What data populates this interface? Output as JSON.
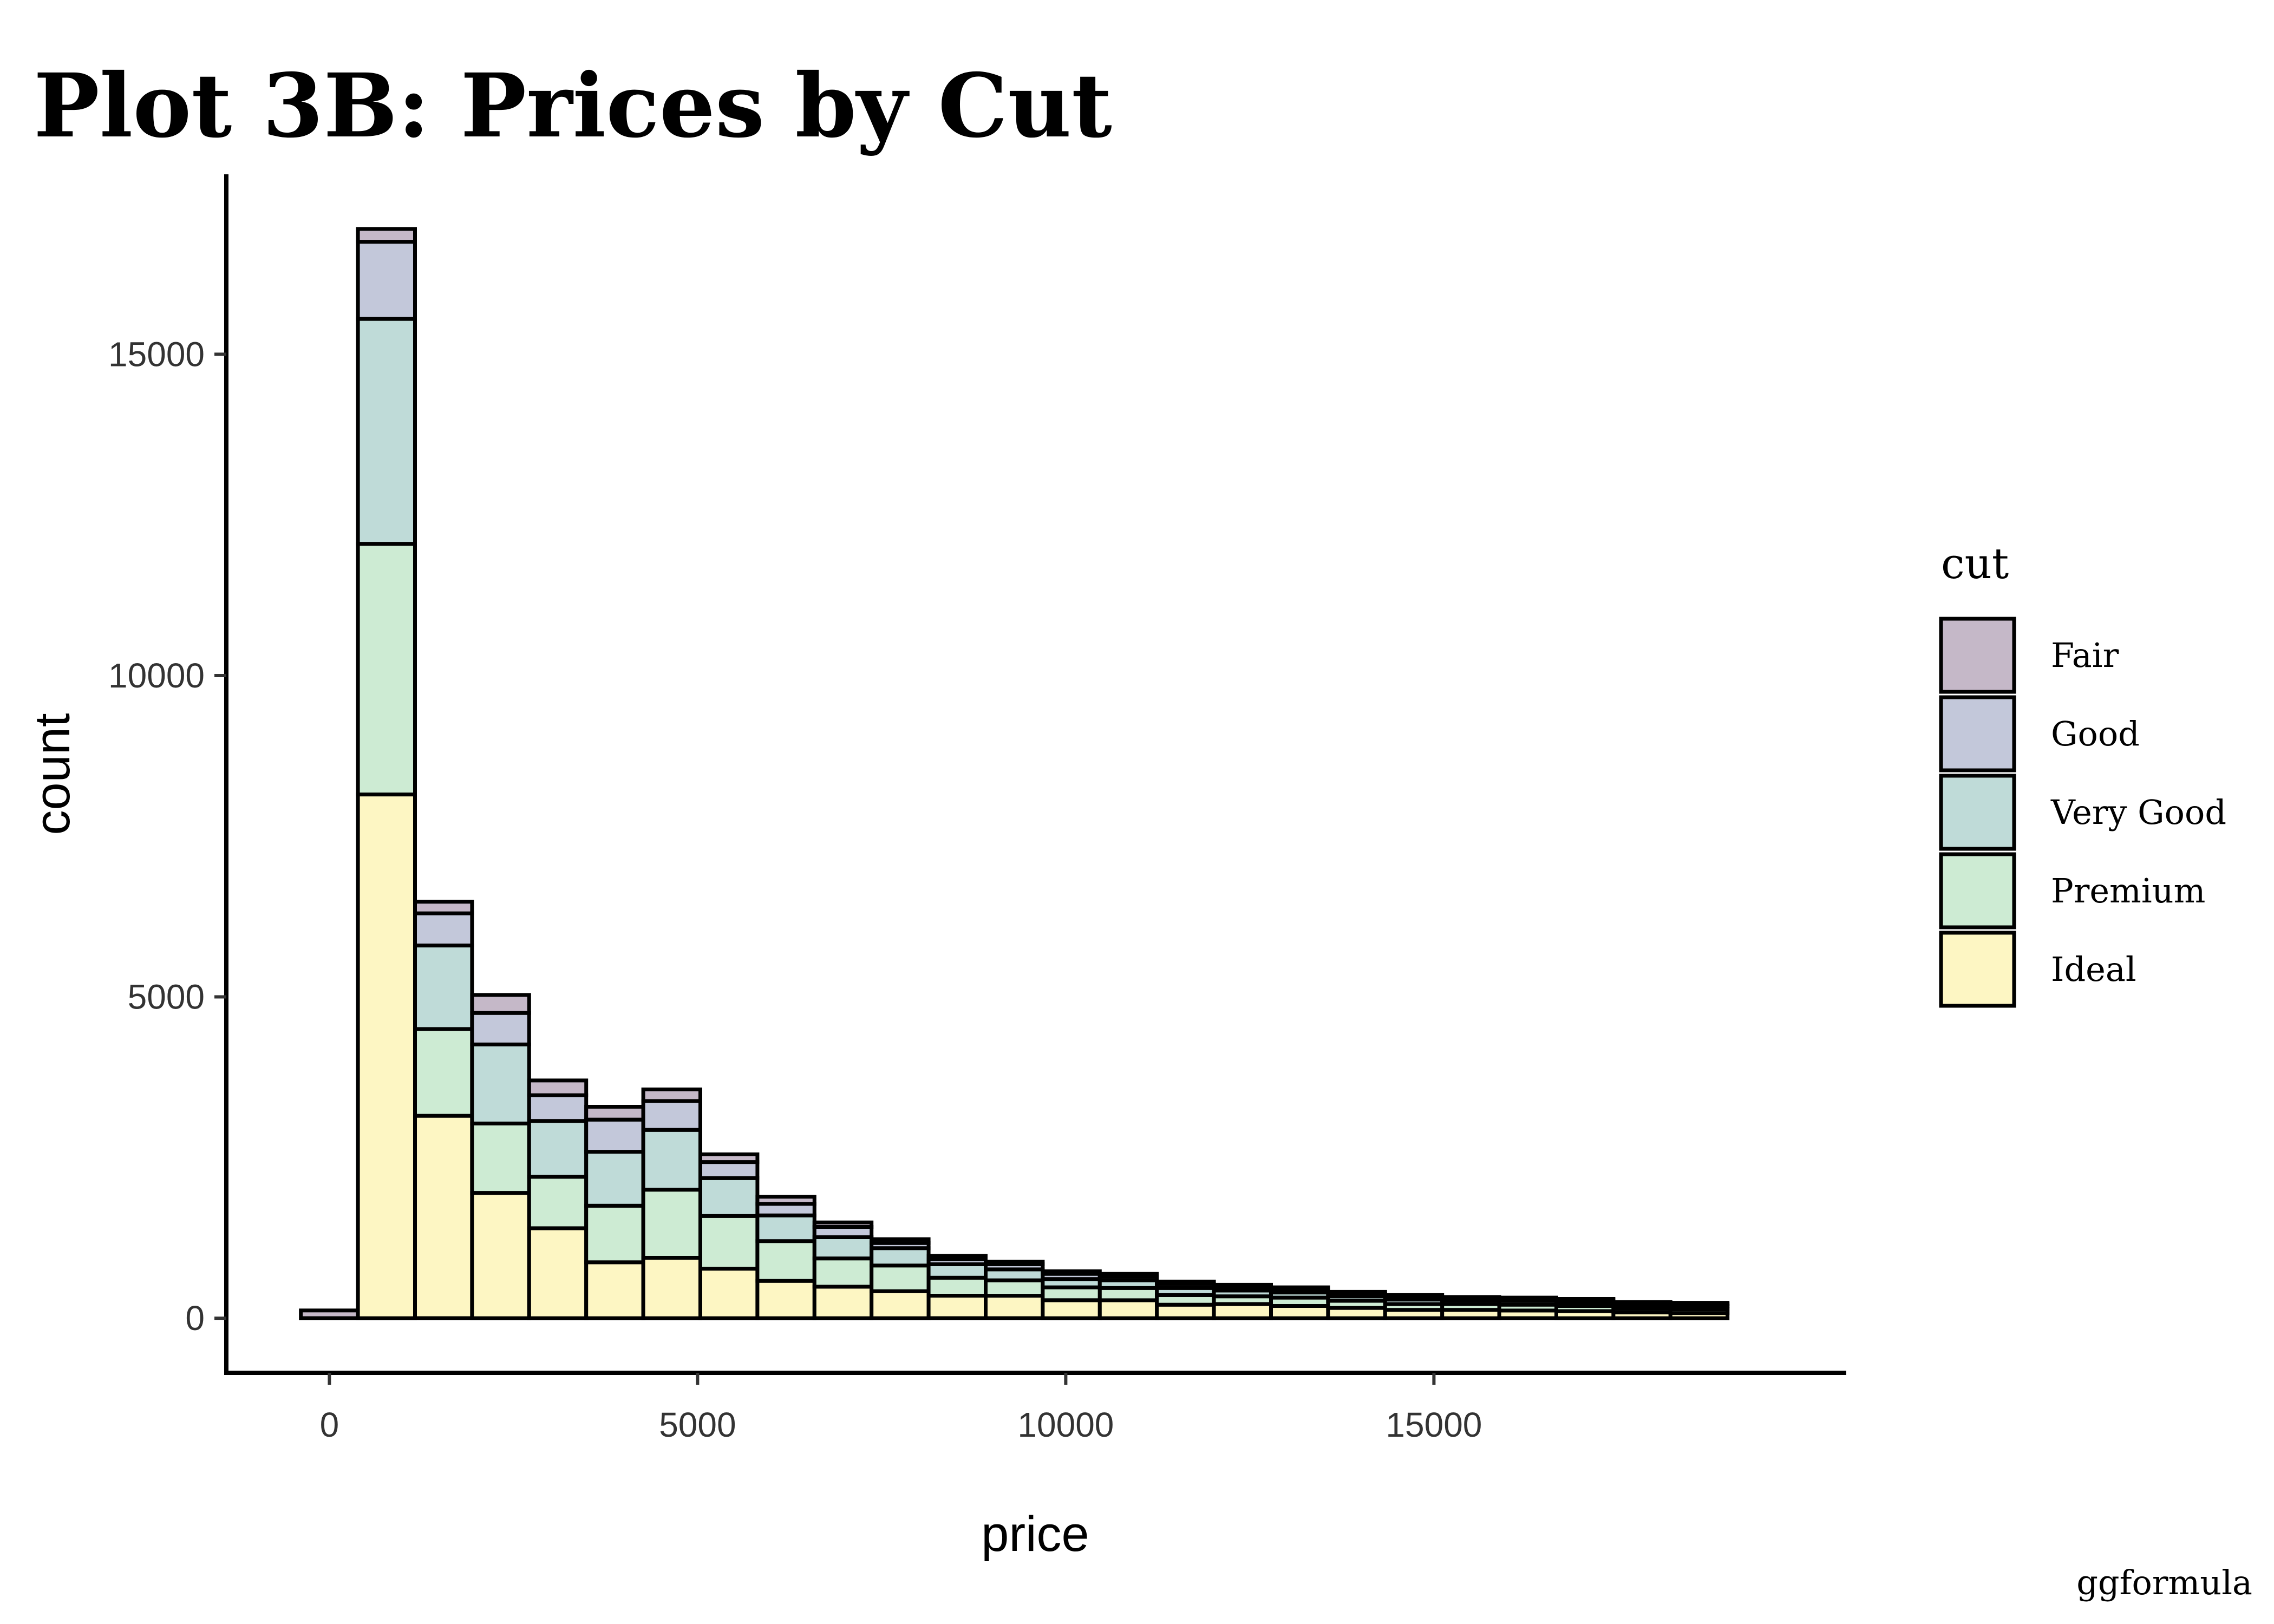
{
  "title": "Plot 3B: Prices by Cut",
  "caption": "ggformula",
  "chart_data": {
    "type": "bar",
    "subtype": "stacked-histogram",
    "xlabel": "price",
    "ylabel": "count",
    "xlim": [
      -1400,
      20600
    ],
    "ylim": [
      -850,
      17800
    ],
    "x_ticks": [
      0,
      5000,
      10000,
      15000
    ],
    "x_tick_labels": [
      "0",
      "5000",
      "10000",
      "15000"
    ],
    "y_ticks": [
      0,
      5000,
      10000,
      15000
    ],
    "y_tick_labels": [
      "0",
      "5000",
      "10000",
      "15000"
    ],
    "bin_width": 775,
    "bin_centers": [
      0,
      775,
      1550,
      2325,
      3100,
      3875,
      4650,
      5425,
      6200,
      6975,
      7750,
      8525,
      9300,
      10075,
      10850,
      11625,
      12400,
      13175,
      13950,
      14725,
      15500,
      16275,
      17050,
      17825,
      18600
    ],
    "series": [
      {
        "name": "Ideal",
        "color": "#fdf6c3",
        "values": [
          0,
          8150,
          3150,
          1950,
          1400,
          870,
          940,
          770,
          580,
          490,
          420,
          350,
          350,
          280,
          280,
          210,
          220,
          190,
          160,
          130,
          130,
          120,
          110,
          90,
          80
        ]
      },
      {
        "name": "Premium",
        "color": "#cdebd3",
        "values": [
          0,
          3900,
          1350,
          1080,
          800,
          880,
          1060,
          820,
          620,
          440,
          400,
          280,
          240,
          200,
          190,
          150,
          120,
          130,
          110,
          90,
          90,
          90,
          80,
          60,
          60
        ]
      },
      {
        "name": "Very Good",
        "color": "#bfdbd8",
        "values": [
          0,
          3500,
          1300,
          1230,
          870,
          840,
          930,
          590,
          400,
          330,
          270,
          210,
          170,
          130,
          120,
          110,
          90,
          80,
          70,
          70,
          60,
          60,
          60,
          50,
          50
        ]
      },
      {
        "name": "Good",
        "color": "#c3c8da",
        "values": [
          0,
          1200,
          500,
          490,
          400,
          500,
          450,
          250,
          180,
          160,
          80,
          80,
          80,
          80,
          60,
          60,
          50,
          50,
          40,
          40,
          30,
          30,
          30,
          30,
          30
        ]
      },
      {
        "name": "Fair",
        "color": "#c5b8c8",
        "values": [
          120,
          200,
          180,
          280,
          230,
          200,
          180,
          120,
          110,
          70,
          60,
          50,
          40,
          40,
          40,
          40,
          40,
          30,
          30,
          30,
          20,
          20,
          20,
          20,
          20
        ]
      }
    ],
    "legend": {
      "title": "cut",
      "position": "right",
      "items": [
        "Fair",
        "Good",
        "Very Good",
        "Premium",
        "Ideal"
      ]
    },
    "grid": false
  }
}
